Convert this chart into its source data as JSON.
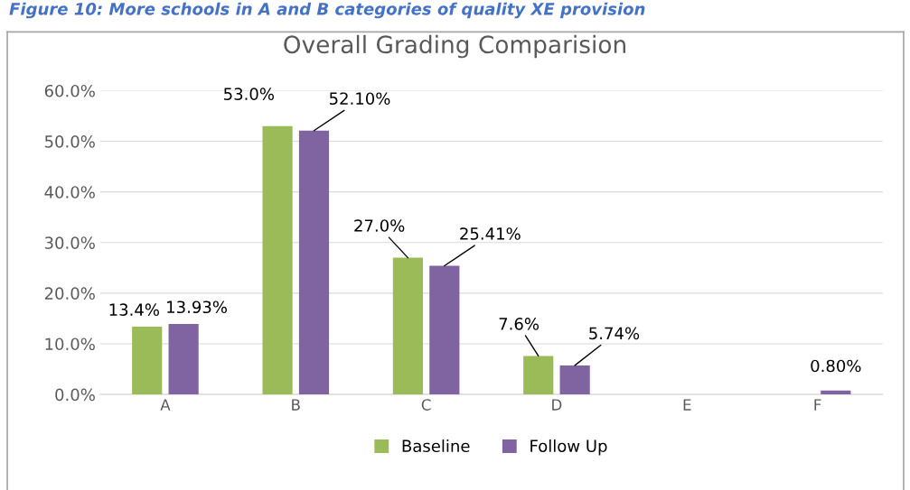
{
  "chart_data": {
    "type": "bar",
    "title": "Overall Grading Comparision",
    "annotations": [
      "Figure 10: More schools in A and B categories of quality XE provision"
    ],
    "categories": [
      "A",
      "B",
      "C",
      "D",
      "E",
      "F"
    ],
    "series": [
      {
        "name": "Baseline",
        "color": "#9bbb59",
        "values": [
          13.4,
          53.0,
          27.0,
          7.6,
          null,
          null
        ],
        "value_labels": [
          "13.4%",
          "53.0%",
          "27.0%",
          "7.6%",
          null,
          null
        ]
      },
      {
        "name": "Follow Up",
        "color": "#8064a2",
        "values": [
          13.93,
          52.1,
          25.41,
          5.74,
          null,
          0.8
        ],
        "value_labels": [
          "13.93%",
          "52.10%",
          "25.41%",
          "5.74%",
          null,
          "0.80%"
        ]
      }
    ],
    "ylim": [
      0,
      60
    ],
    "yticks": [
      {
        "value": 0,
        "label": "0.0%"
      },
      {
        "value": 10,
        "label": "10.0%"
      },
      {
        "value": 20,
        "label": "20.0%"
      },
      {
        "value": 30,
        "label": "30.0%"
      },
      {
        "value": 40,
        "label": "40.0%"
      },
      {
        "value": 50,
        "label": "50.0%"
      },
      {
        "value": 60,
        "label": "60.0%"
      }
    ],
    "grid": "y",
    "legend": "bottom"
  }
}
